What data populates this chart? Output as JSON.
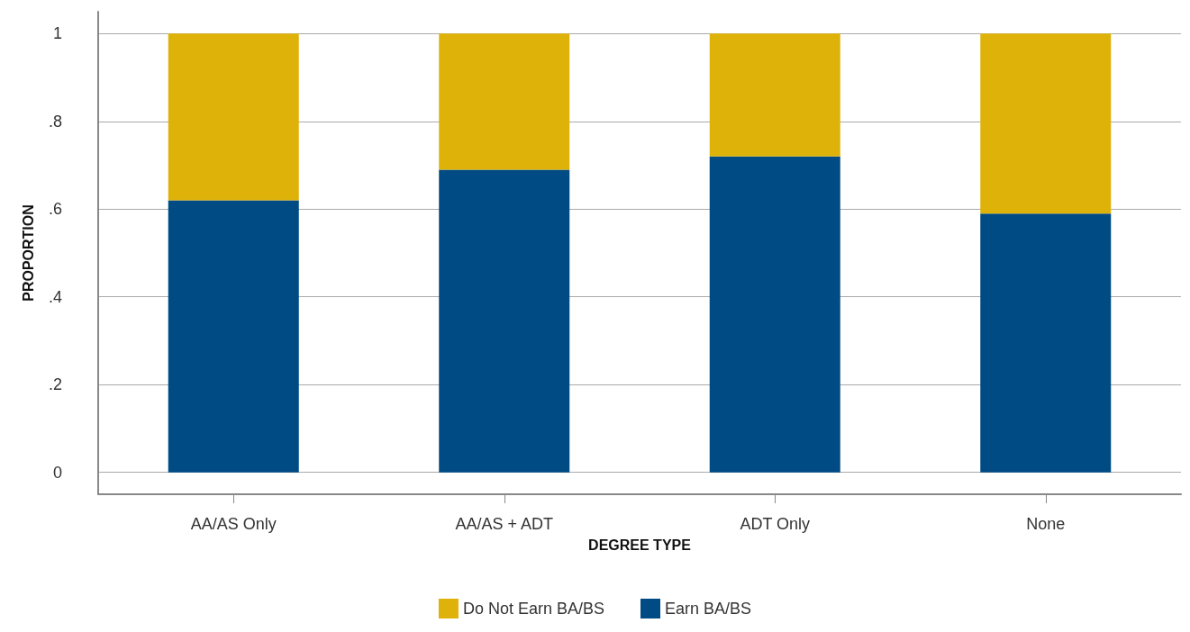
{
  "chart_data": {
    "type": "bar",
    "stacked": true,
    "xlabel": "DEGREE TYPE",
    "ylabel": "PROPORTION",
    "categories": [
      "AA/AS Only",
      "AA/AS + ADT",
      "ADT Only",
      "None"
    ],
    "series": [
      {
        "name": "Earn BA/BS",
        "color": "#004b84",
        "values": [
          0.62,
          0.69,
          0.72,
          0.59
        ]
      },
      {
        "name": "Do Not Earn BA/BS",
        "color": "#dfb20a",
        "values": [
          0.38,
          0.31,
          0.28,
          0.41
        ]
      }
    ],
    "ylim": [
      -0.05,
      1.05
    ],
    "yticks": [
      0,
      {
        "value": 0.2,
        "label": ".2"
      },
      {
        "value": 0.4,
        "label": ".4"
      },
      {
        "value": 0.6,
        "label": ".6"
      },
      {
        "value": 0.8,
        "label": ".8"
      },
      1
    ],
    "grid": "y",
    "legend": "bottom"
  }
}
